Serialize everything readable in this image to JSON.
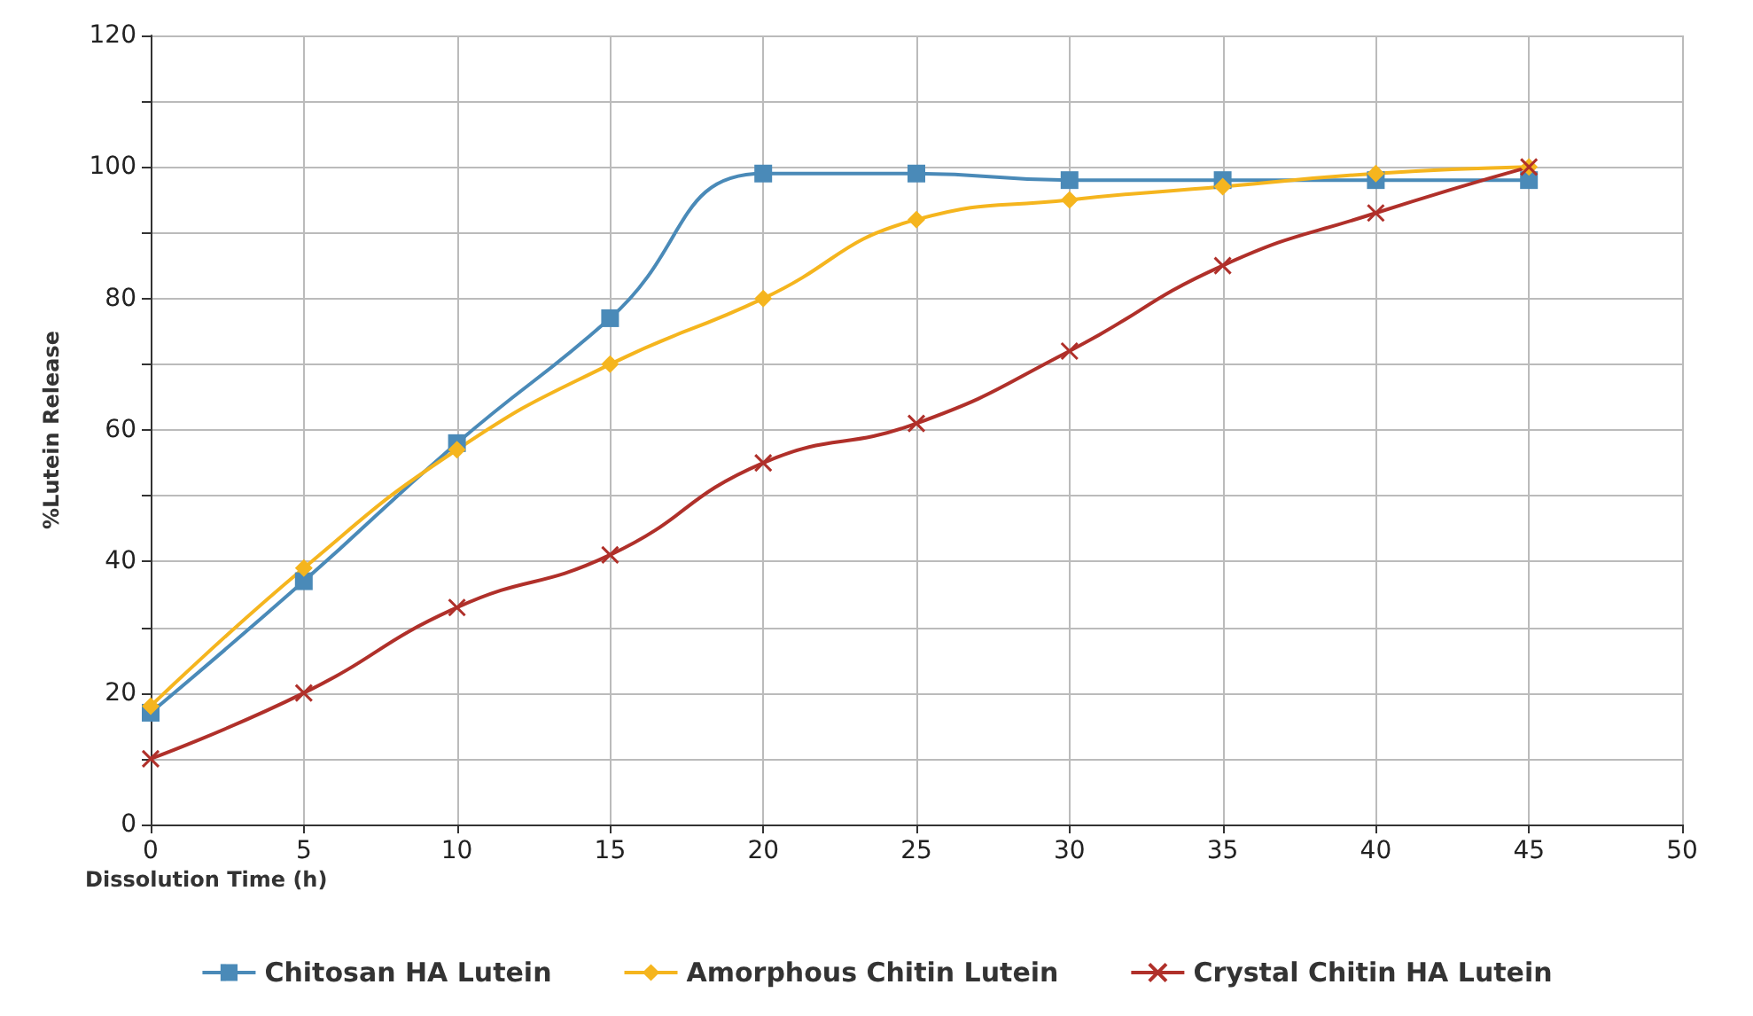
{
  "chart_data": {
    "type": "line",
    "xlabel": "Dissolution Time (h)",
    "ylabel": "%Lutein Release",
    "x": [
      0,
      5,
      10,
      15,
      20,
      25,
      30,
      35,
      40,
      45
    ],
    "series": [
      {
        "name": "Chitosan HA Lutein",
        "color": "#4a8ab8",
        "marker": "square",
        "values": [
          17,
          37,
          58,
          77,
          99,
          99,
          98,
          98,
          98,
          98
        ]
      },
      {
        "name": "Amorphous Chitin Lutein",
        "color": "#f5b51e",
        "marker": "diamond",
        "values": [
          18,
          39,
          57,
          70,
          80,
          92,
          95,
          97,
          99,
          100
        ]
      },
      {
        "name": "Crystal Chitin HA Lutein",
        "color": "#b0302a",
        "marker": "cross",
        "values": [
          10,
          20,
          33,
          41,
          55,
          61,
          72,
          85,
          93,
          100
        ]
      }
    ],
    "xlim": [
      0,
      50
    ],
    "xticks": [
      0,
      5,
      10,
      15,
      20,
      25,
      30,
      35,
      40,
      45,
      50
    ],
    "ylim": [
      0,
      120
    ],
    "yticks": [
      0,
      {
        "value": 10,
        "label": null
      },
      20,
      {
        "value": 30,
        "label": null
      },
      40,
      {
        "value": 50,
        "label": null
      },
      60,
      {
        "value": 70,
        "label": null
      },
      80,
      {
        "value": 90,
        "label": null
      },
      100,
      {
        "value": 110,
        "label": null
      },
      120
    ],
    "grid": true,
    "legend": "bottom",
    "line_style": "solid"
  }
}
